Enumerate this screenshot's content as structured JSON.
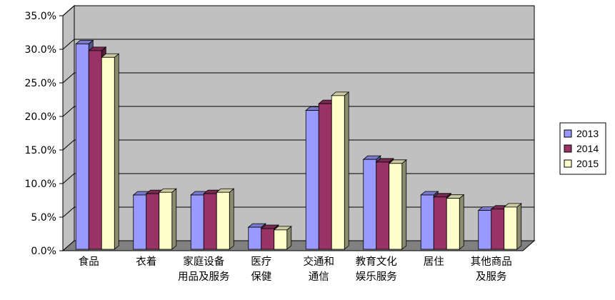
{
  "chart_data": {
    "type": "bar",
    "title": "",
    "xlabel": "",
    "ylabel": "",
    "ylim": [
      0,
      35
    ],
    "y_ticks": [
      "0.0%",
      "5.0%",
      "10.0%",
      "15.0%",
      "20.0%",
      "25.0%",
      "30.0%",
      "35.0%"
    ],
    "categories": [
      [
        "食品"
      ],
      [
        "衣着"
      ],
      [
        "家庭设备",
        "用品及服务"
      ],
      [
        "医疗",
        "保健"
      ],
      [
        "交通和",
        "通信"
      ],
      [
        "教育文化",
        "娱乐服务"
      ],
      [
        "居住"
      ],
      [
        "其他商品",
        "及服务"
      ]
    ],
    "series": [
      {
        "name": "2013",
        "color": "#9999ff",
        "values": [
          30.8,
          8.3,
          8.3,
          3.5,
          20.9,
          13.6,
          8.3,
          6.0
        ]
      },
      {
        "name": "2014",
        "color": "#993366",
        "values": [
          29.8,
          8.5,
          8.5,
          3.3,
          21.9,
          13.2,
          8.0,
          6.2
        ]
      },
      {
        "name": "2015",
        "color": "#ffffcc",
        "values": [
          28.8,
          8.7,
          8.7,
          3.1,
          23.1,
          13.0,
          7.8,
          6.5
        ]
      }
    ],
    "grid": true,
    "legend_position": "right",
    "colors": {
      "wall": "#c0c0c0",
      "floor": "#808080",
      "grid": "#000000",
      "bar_side_shade": "#808060"
    }
  }
}
